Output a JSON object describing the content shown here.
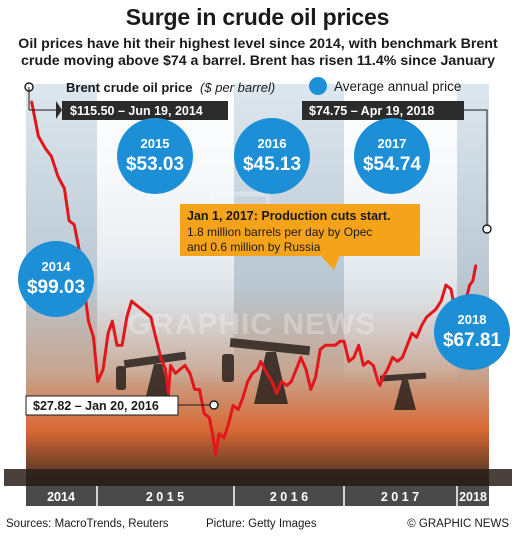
{
  "page": {
    "title": "Surge in crude oil prices",
    "subtitle": "Oil prices have hit their highest level since 2014, with benchmark Brent crude moving above $74 a barrel. Brent has risen 11.4% since January"
  },
  "legend": {
    "series_label": "Brent crude oil price",
    "series_unit": "($ per barrel)",
    "average_label": "Average annual price"
  },
  "footer": {
    "sources": "Sources: MacroTrends, Reuters",
    "picture": "Picture: Getty Images",
    "copyright": "© GRAPHIC NEWS"
  },
  "watermark": "GRAPHIC NEWS",
  "colors": {
    "line": "#e3161b",
    "bubble": "#1c8fd6",
    "callout": "#f5a31a",
    "label_bg": "#2b2b2b",
    "year_bar": "#4a4a4a"
  },
  "chart_data": {
    "type": "line",
    "x_unit": "date",
    "y_unit": "$ per barrel",
    "ylim": [
      20,
      120
    ],
    "xlim": [
      "2014-06-01",
      "2018-05-31"
    ],
    "series": [
      {
        "name": "Brent crude oil price",
        "x": [
          "2014-06-19",
          "2014-07-10",
          "2014-08-01",
          "2014-08-20",
          "2014-09-10",
          "2014-09-30",
          "2014-10-15",
          "2014-10-31",
          "2014-11-15",
          "2014-11-30",
          "2014-12-15",
          "2014-12-31",
          "2015-01-13",
          "2015-01-30",
          "2015-02-15",
          "2015-02-28",
          "2015-03-15",
          "2015-03-31",
          "2015-04-15",
          "2015-04-30",
          "2015-05-15",
          "2015-05-31",
          "2015-06-15",
          "2015-06-30",
          "2015-07-15",
          "2015-07-31",
          "2015-08-15",
          "2015-08-24",
          "2015-08-31",
          "2015-09-15",
          "2015-09-30",
          "2015-10-15",
          "2015-10-31",
          "2015-11-15",
          "2015-11-30",
          "2015-12-15",
          "2015-12-31",
          "2016-01-10",
          "2016-01-20",
          "2016-01-31",
          "2016-02-15",
          "2016-02-28",
          "2016-03-15",
          "2016-03-31",
          "2016-04-15",
          "2016-04-30",
          "2016-05-15",
          "2016-05-31",
          "2016-06-10",
          "2016-06-30",
          "2016-07-15",
          "2016-07-31",
          "2016-08-15",
          "2016-08-31",
          "2016-09-15",
          "2016-09-30",
          "2016-10-15",
          "2016-10-31",
          "2016-11-15",
          "2016-11-30",
          "2016-12-15",
          "2016-12-31",
          "2017-01-01",
          "2017-01-15",
          "2017-01-31",
          "2017-02-15",
          "2017-02-28",
          "2017-03-15",
          "2017-03-31",
          "2017-04-15",
          "2017-04-30",
          "2017-05-15",
          "2017-05-31",
          "2017-06-15",
          "2017-06-21",
          "2017-06-30",
          "2017-07-15",
          "2017-07-31",
          "2017-08-15",
          "2017-08-31",
          "2017-09-15",
          "2017-09-30",
          "2017-10-15",
          "2017-10-31",
          "2017-11-15",
          "2017-11-30",
          "2017-12-15",
          "2017-12-31",
          "2018-01-15",
          "2018-01-31",
          "2018-02-15",
          "2018-02-28",
          "2018-03-15",
          "2018-03-31",
          "2018-04-10",
          "2018-04-19"
        ],
        "y": [
          115.5,
          107,
          104,
          102,
          97,
          94,
          86,
          85,
          79,
          70,
          61,
          57,
          46,
          49,
          58,
          61,
          55,
          55,
          62,
          66,
          65,
          64,
          63,
          62,
          57,
          52,
          49,
          43,
          50,
          48,
          49,
          50,
          48,
          44,
          44,
          38,
          37,
          33,
          27.82,
          33,
          32,
          35,
          40,
          39,
          42,
          46,
          48,
          49,
          51,
          48,
          46,
          43,
          46,
          45,
          46,
          49,
          52,
          49,
          44,
          47,
          54,
          55,
          55,
          55,
          55,
          56,
          56,
          51,
          52,
          55,
          50,
          51,
          50,
          46,
          45,
          47,
          49,
          52,
          51,
          52,
          55,
          58,
          57,
          60,
          62,
          63,
          64,
          66,
          70,
          69,
          63,
          65,
          65,
          70,
          71,
          74.75
        ]
      }
    ],
    "annotations": [
      {
        "label": "$115.50 – Jun 19, 2014",
        "x": "2014-06-19",
        "y": 115.5
      },
      {
        "label": "$27.82 – Jan 20, 2016",
        "x": "2016-01-20",
        "y": 27.82
      },
      {
        "label": "$74.75 – Apr 19, 2018",
        "x": "2018-04-19",
        "y": 74.75
      },
      {
        "title": "Jan 1, 2017: Production cuts start.",
        "text": "1.8 million barrels per day by Opec and 0.6 million by Russia",
        "x": "2017-01-01",
        "y": 55
      }
    ],
    "averages": [
      {
        "year": "2014",
        "value": "$99.03"
      },
      {
        "year": "2015",
        "value": "$53.03"
      },
      {
        "year": "2016",
        "value": "$45.13"
      },
      {
        "year": "2017",
        "value": "$54.74"
      },
      {
        "year": "2018",
        "value": "$67.81"
      }
    ],
    "years": [
      "2014",
      "2 0 1 5",
      "2 0 1 6",
      "2 0 1 7",
      "2018"
    ],
    "grid": false
  }
}
